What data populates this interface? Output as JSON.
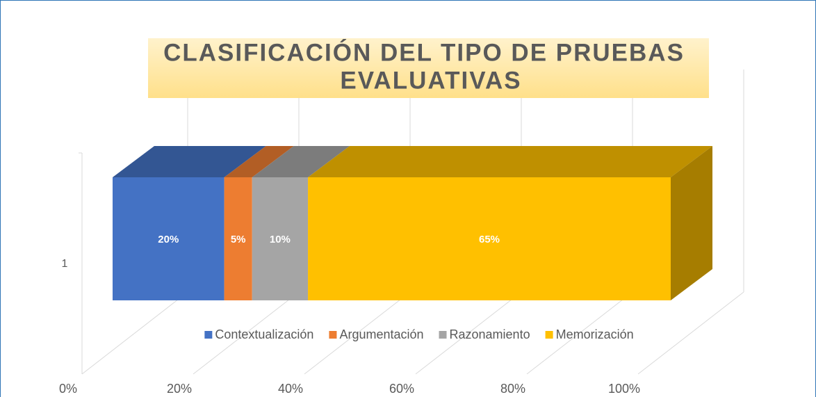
{
  "chart_data": {
    "type": "bar3d_stacked_horizontal",
    "title": "CLASIFICACIÓN DEL TIPO DE PRUEBAS EVALUATIVAS",
    "categories": [
      "1"
    ],
    "series": [
      {
        "name": "Contextualización",
        "color": "#4472c4",
        "values": [
          20
        ],
        "value_labels": [
          "20%"
        ]
      },
      {
        "name": "Argumentación",
        "color": "#ed7d31",
        "values": [
          5
        ],
        "value_labels": [
          "5%"
        ]
      },
      {
        "name": "Razonamiento",
        "color": "#a5a5a5",
        "values": [
          10
        ],
        "value_labels": [
          "10%"
        ]
      },
      {
        "name": "Memorización",
        "color": "#ffc000",
        "values": [
          65
        ],
        "value_labels": [
          "65%"
        ]
      }
    ],
    "xlim": [
      0,
      100
    ],
    "xticks": [
      {
        "value": 0,
        "label": "0%"
      },
      {
        "value": 20,
        "label": "20%"
      },
      {
        "value": 40,
        "label": "40%"
      },
      {
        "value": 60,
        "label": "60%"
      },
      {
        "value": 80,
        "label": "80%"
      },
      {
        "value": 100,
        "label": "100%"
      }
    ],
    "grid": true,
    "legend": "bottom"
  }
}
